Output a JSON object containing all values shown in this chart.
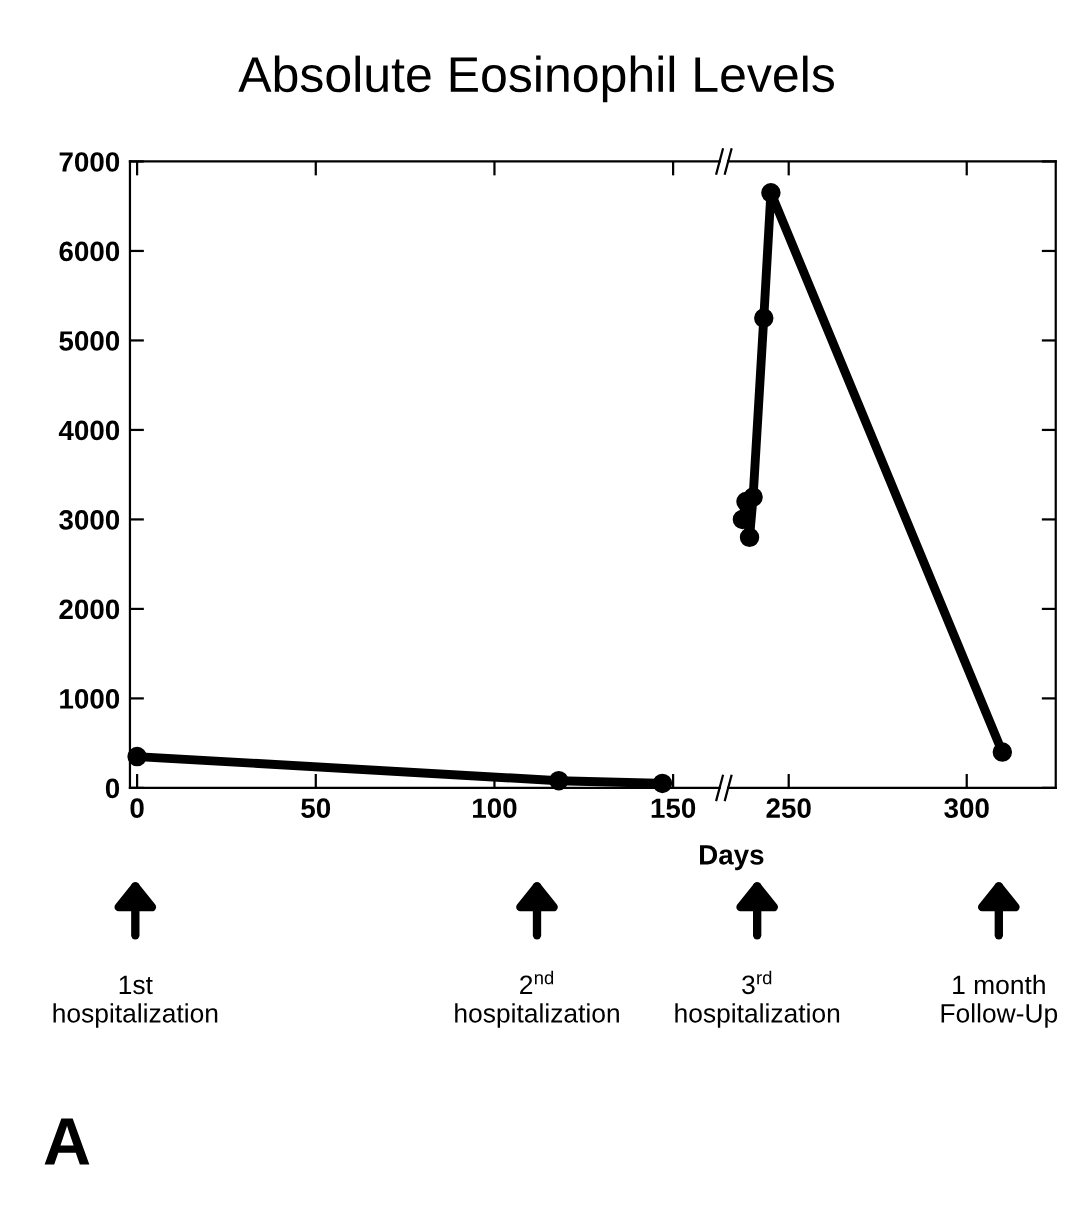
{
  "chart_data": [
    {
      "type": "line",
      "title": "Absolute Eosinophil Levels",
      "xlabel": "Days",
      "xlim": [
        -2,
        163
      ],
      "xticks": [
        0,
        50,
        100,
        150
      ],
      "ylim": [
        0,
        7000
      ],
      "yticks": [
        0,
        1000,
        2000,
        3000,
        4000,
        5000,
        6000,
        7000
      ],
      "marker": "circle",
      "line_style": "solid",
      "grid": false,
      "legend": false,
      "series": [
        {
          "color": "#000000",
          "x": [
            0,
            118,
            147
          ],
          "values": [
            350,
            80,
            50
          ]
        }
      ],
      "annotations": [
        "1st\nhospitalization",
        "2$^{nd}$\nhospitalization",
        "A"
      ]
    },
    {
      "type": "line",
      "xlim": [
        233,
        325
      ],
      "xticks": [
        250,
        300
      ],
      "ylim": [
        0,
        7000
      ],
      "yticks": [
        0,
        1000,
        2000,
        3000,
        4000,
        5000,
        6000,
        7000
      ],
      "tick_labels": "x",
      "marker": "circle",
      "line_style": "solid",
      "grid": false,
      "legend": false,
      "series": [
        {
          "color": "#000000",
          "x": [
            237,
            238,
            239,
            240,
            243,
            245,
            310
          ],
          "values": [
            3000,
            3200,
            2800,
            3250,
            5250,
            6650,
            400
          ]
        }
      ],
      "annotations": [
        "3$^{rd}$\nhospitalization",
        "1 month\nFollow-Up"
      ]
    }
  ]
}
